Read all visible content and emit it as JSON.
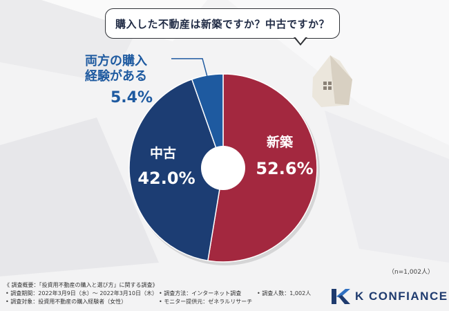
{
  "question": "購入した不動産は新築ですか？中古ですか？",
  "n_label": "（n=1,002人）",
  "chart_data": {
    "type": "pie",
    "title": "購入した不動産は新築ですか？中古ですか？",
    "slices": [
      {
        "label": "新築",
        "label_lines": [
          "新築"
        ],
        "value": 52.6,
        "value_label": "52.6%",
        "color": "#a3283f"
      },
      {
        "label": "中古",
        "label_lines": [
          "中古"
        ],
        "value": 42.0,
        "value_label": "42.0%",
        "color": "#1c3d73"
      },
      {
        "label": "両方の購入経験がある",
        "label_lines": [
          "両方の購入",
          "経験がある"
        ],
        "value": 5.4,
        "value_label": "5.4%",
        "color": "#1e5aa0"
      }
    ],
    "donut": true,
    "start_angle_deg": 0,
    "direction": "clockwise"
  },
  "footer": {
    "overview": "《 調査概要：「投資用不動産の購入と選び方」に関する調査》",
    "period": "• 調査期間：2022年3月9日（水）～ 2022年3月10日（木）",
    "method": "• 調査方法：インターネット調査",
    "count": "• 調査人数：1,002人",
    "target": "• 調査対象：投資用不動産の購入経験者（女性）",
    "provider": "• モニター提供元：ゼネラルリサーチ"
  },
  "brand": {
    "name": "K CONFIANCE",
    "color": "#1e3a6e"
  }
}
